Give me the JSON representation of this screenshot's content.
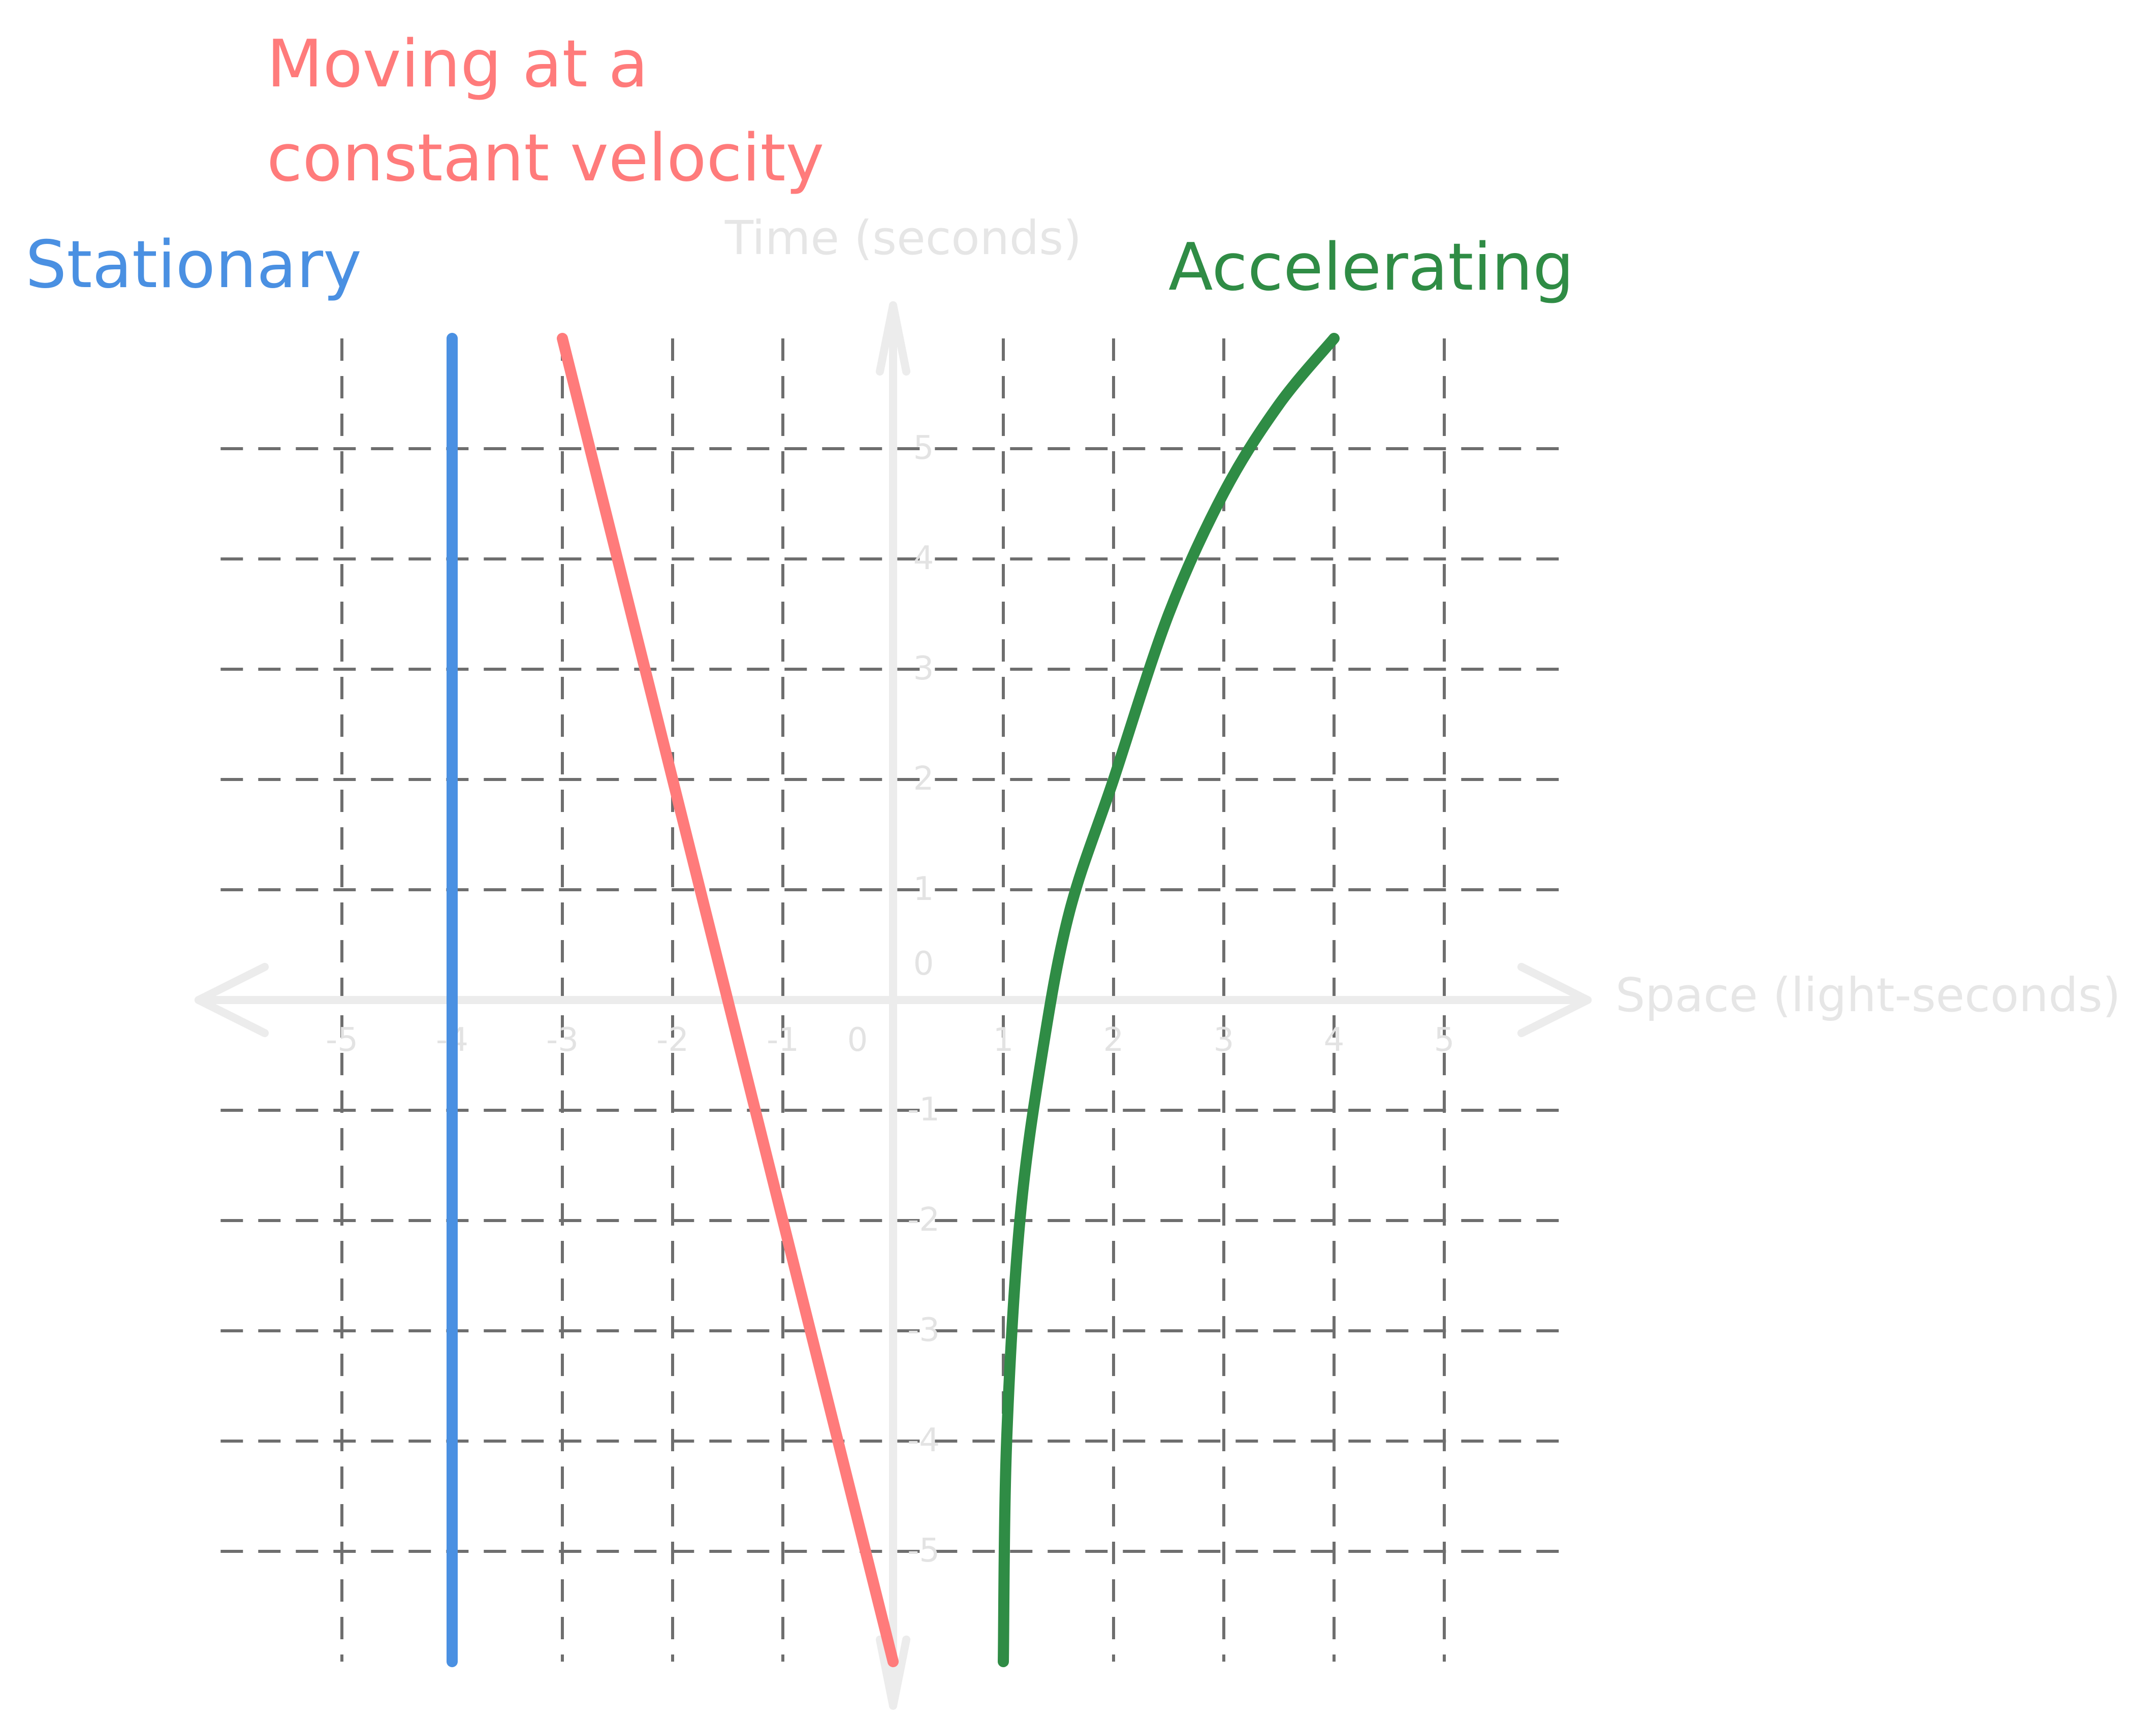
{
  "chart_data": {
    "type": "line",
    "title": "",
    "xlabel": "Space (light-seconds)",
    "ylabel": "Time (seconds)",
    "xlim": [
      -6,
      6
    ],
    "ylim": [
      -6,
      6
    ],
    "grid": true,
    "x_ticks": [
      "-5",
      "-4",
      "-3",
      "-2",
      "-1",
      "0",
      "1",
      "2",
      "3",
      "4",
      "5"
    ],
    "y_ticks": [
      "5",
      "4",
      "3",
      "2",
      "1",
      "0",
      "-1",
      "-2",
      "-3",
      "-4",
      "-5"
    ],
    "series": [
      {
        "name": "Stationary",
        "color": "#4a90e2",
        "points": [
          [
            -4,
            6
          ],
          [
            -4,
            -6
          ]
        ]
      },
      {
        "name": "Moving at a constant velocity",
        "color": "#ff7b7b",
        "points": [
          [
            -3,
            6
          ],
          [
            0,
            -6
          ]
        ]
      },
      {
        "name": "Accelerating",
        "color": "#2f8c45",
        "points": [
          [
            1,
            -6
          ],
          [
            1.03,
            -4
          ],
          [
            1.15,
            -2
          ],
          [
            1.35,
            -0.5
          ],
          [
            1.6,
            0.8
          ],
          [
            2,
            2
          ],
          [
            2.5,
            3.5
          ],
          [
            3,
            4.6
          ],
          [
            3.5,
            5.4
          ],
          [
            4,
            6
          ]
        ]
      }
    ],
    "annotations": [
      {
        "text": "Stationary",
        "color": "#4a90e2"
      },
      {
        "text": "Moving at a constant velocity",
        "line1": "Moving at a",
        "line2": "constant velocity",
        "color": "#ff7b7b"
      },
      {
        "text": "Accelerating",
        "color": "#2f8c45"
      }
    ]
  }
}
